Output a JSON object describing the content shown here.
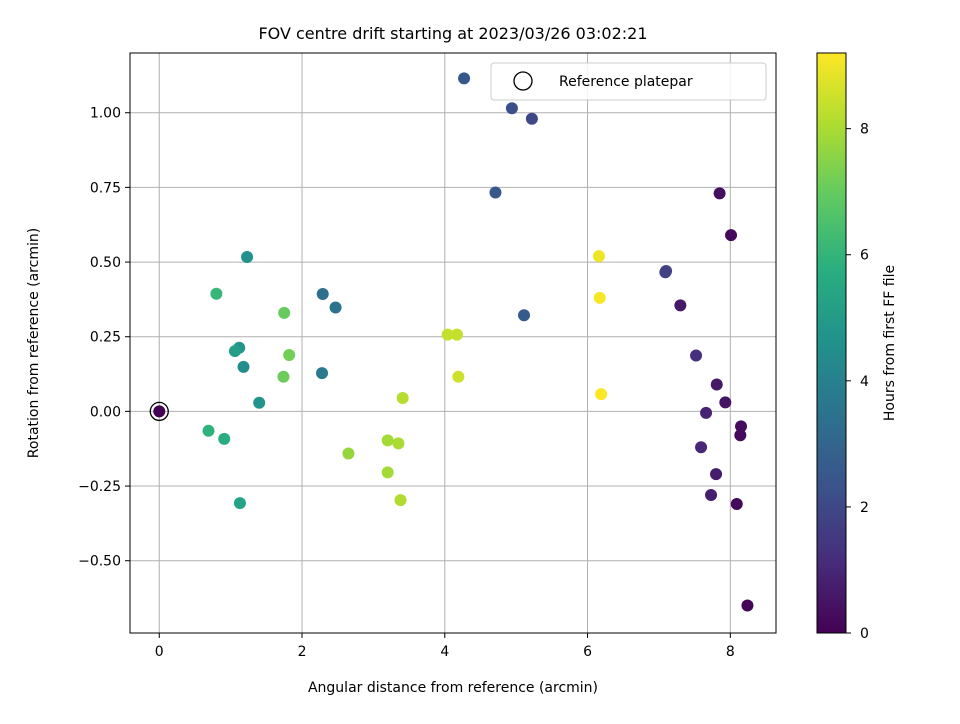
{
  "chart_data": {
    "type": "scatter",
    "title": "FOV centre drift starting at 2023/03/26 03:02:21",
    "xlabel": "Angular distance from reference (arcmin)",
    "ylabel": "Rotation from reference (arcmin)",
    "colorbar_label": "Hours from first FF file",
    "xlim": [
      -0.41,
      8.64
    ],
    "ylim": [
      -0.742,
      1.2
    ],
    "clim": [
      0,
      9.2
    ],
    "colormap": "viridis",
    "grid": true,
    "legend_position": "top-right",
    "x_ticks": [
      {
        "value": 0,
        "label": "0"
      },
      {
        "value": 2,
        "label": "2"
      },
      {
        "value": 4,
        "label": "4"
      },
      {
        "value": 6,
        "label": "6"
      },
      {
        "value": 8,
        "label": "8"
      }
    ],
    "y_ticks": [
      {
        "value": -0.5,
        "label": "−0.50"
      },
      {
        "value": -0.25,
        "label": "−0.25"
      },
      {
        "value": 0,
        "label": "0.00"
      },
      {
        "value": 0.25,
        "label": "0.25"
      },
      {
        "value": 0.5,
        "label": "0.50"
      },
      {
        "value": 0.75,
        "label": "0.75"
      },
      {
        "value": 1.0,
        "label": "1.00"
      }
    ],
    "colorbar_ticks": [
      {
        "value": 0,
        "label": "0"
      },
      {
        "value": 2,
        "label": "2"
      },
      {
        "value": 4,
        "label": "4"
      },
      {
        "value": 6,
        "label": "6"
      },
      {
        "value": 8,
        "label": "8"
      }
    ],
    "reference_point": {
      "x": 0,
      "y": 0,
      "label": "Reference platepar"
    },
    "points": [
      {
        "x": 0.0,
        "y": 0.0,
        "hours": 0.0
      },
      {
        "x": 8.24,
        "y": -0.65,
        "hours": 0.1
      },
      {
        "x": 8.09,
        "y": -0.31,
        "hours": 0.2
      },
      {
        "x": 8.14,
        "y": -0.08,
        "hours": 0.2
      },
      {
        "x": 8.15,
        "y": -0.05,
        "hours": 0.3
      },
      {
        "x": 8.01,
        "y": 0.59,
        "hours": 0.2
      },
      {
        "x": 7.85,
        "y": 0.73,
        "hours": 0.4
      },
      {
        "x": 7.93,
        "y": 0.03,
        "hours": 0.5
      },
      {
        "x": 7.81,
        "y": 0.09,
        "hours": 0.6
      },
      {
        "x": 7.8,
        "y": -0.21,
        "hours": 0.7
      },
      {
        "x": 7.73,
        "y": -0.28,
        "hours": 0.8
      },
      {
        "x": 7.66,
        "y": -0.005,
        "hours": 0.9
      },
      {
        "x": 7.59,
        "y": -0.12,
        "hours": 1.0
      },
      {
        "x": 7.3,
        "y": 0.355,
        "hours": 0.6
      },
      {
        "x": 7.52,
        "y": 0.187,
        "hours": 1.2
      },
      {
        "x": 7.1,
        "y": 0.47,
        "hours": 1.7
      },
      {
        "x": 7.09,
        "y": 0.466,
        "hours": 1.8
      },
      {
        "x": 5.22,
        "y": 0.98,
        "hours": 2.0
      },
      {
        "x": 4.94,
        "y": 1.015,
        "hours": 2.2
      },
      {
        "x": 4.27,
        "y": 1.115,
        "hours": 2.5
      },
      {
        "x": 4.71,
        "y": 0.733,
        "hours": 2.5
      },
      {
        "x": 5.11,
        "y": 0.322,
        "hours": 2.6
      },
      {
        "x": 2.29,
        "y": 0.393,
        "hours": 3.3
      },
      {
        "x": 2.47,
        "y": 0.348,
        "hours": 3.5
      },
      {
        "x": 2.28,
        "y": 0.128,
        "hours": 3.7
      },
      {
        "x": 1.23,
        "y": 0.517,
        "hours": 4.6
      },
      {
        "x": 1.18,
        "y": 0.149,
        "hours": 4.4
      },
      {
        "x": 1.4,
        "y": 0.029,
        "hours": 4.7
      },
      {
        "x": 1.12,
        "y": 0.213,
        "hours": 4.8
      },
      {
        "x": 1.06,
        "y": 0.202,
        "hours": 5.1
      },
      {
        "x": 1.13,
        "y": -0.307,
        "hours": 5.3
      },
      {
        "x": 0.91,
        "y": -0.092,
        "hours": 5.7
      },
      {
        "x": 0.69,
        "y": -0.065,
        "hours": 5.9
      },
      {
        "x": 0.8,
        "y": 0.394,
        "hours": 6.1
      },
      {
        "x": 1.75,
        "y": 0.33,
        "hours": 7.0
      },
      {
        "x": 1.74,
        "y": 0.116,
        "hours": 7.1
      },
      {
        "x": 1.82,
        "y": 0.189,
        "hours": 7.2
      },
      {
        "x": 2.65,
        "y": -0.141,
        "hours": 7.7
      },
      {
        "x": 3.2,
        "y": -0.097,
        "hours": 7.9
      },
      {
        "x": 3.2,
        "y": -0.204,
        "hours": 7.9
      },
      {
        "x": 3.35,
        "y": -0.107,
        "hours": 8.0
      },
      {
        "x": 3.38,
        "y": -0.297,
        "hours": 8.1
      },
      {
        "x": 3.41,
        "y": 0.045,
        "hours": 8.2
      },
      {
        "x": 4.04,
        "y": 0.257,
        "hours": 8.4
      },
      {
        "x": 4.17,
        "y": 0.257,
        "hours": 8.4
      },
      {
        "x": 4.19,
        "y": 0.116,
        "hours": 8.5
      },
      {
        "x": 6.16,
        "y": 0.52,
        "hours": 9.0
      },
      {
        "x": 6.17,
        "y": 0.38,
        "hours": 9.1
      },
      {
        "x": 6.19,
        "y": 0.058,
        "hours": 9.2
      }
    ]
  }
}
